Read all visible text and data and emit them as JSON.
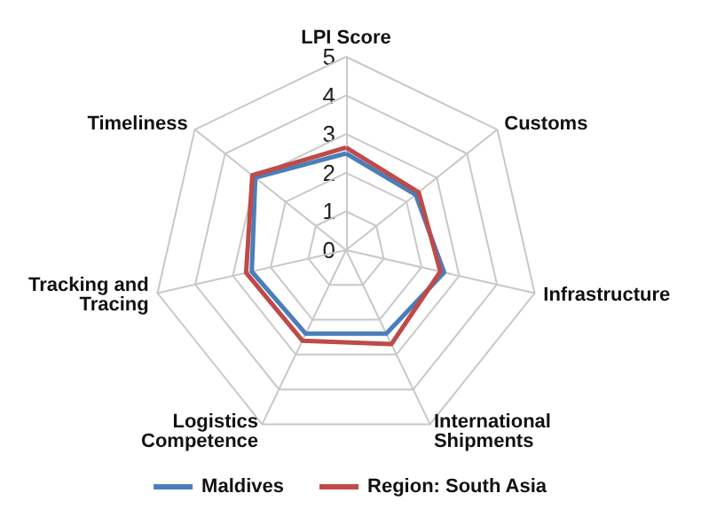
{
  "chart_data": {
    "type": "radar",
    "categories": [
      "LPI Score",
      "Customs",
      "Infrastructure",
      "International Shipments",
      "Logistics Competence",
      "Tracking and Tracing",
      "Timeliness"
    ],
    "series": [
      {
        "name": "Maldives",
        "color": "#4a7ebb",
        "values": [
          2.5,
          2.3,
          2.6,
          2.4,
          2.4,
          2.5,
          3.0
        ]
      },
      {
        "name": "Region: South Asia",
        "color": "#be4b48",
        "values": [
          2.65,
          2.4,
          2.5,
          2.7,
          2.6,
          2.65,
          3.1
        ]
      }
    ],
    "ylim": [
      0,
      5
    ],
    "yticks": [
      0,
      1,
      2,
      3,
      4,
      5
    ],
    "legend": "bottom",
    "grid": true
  }
}
